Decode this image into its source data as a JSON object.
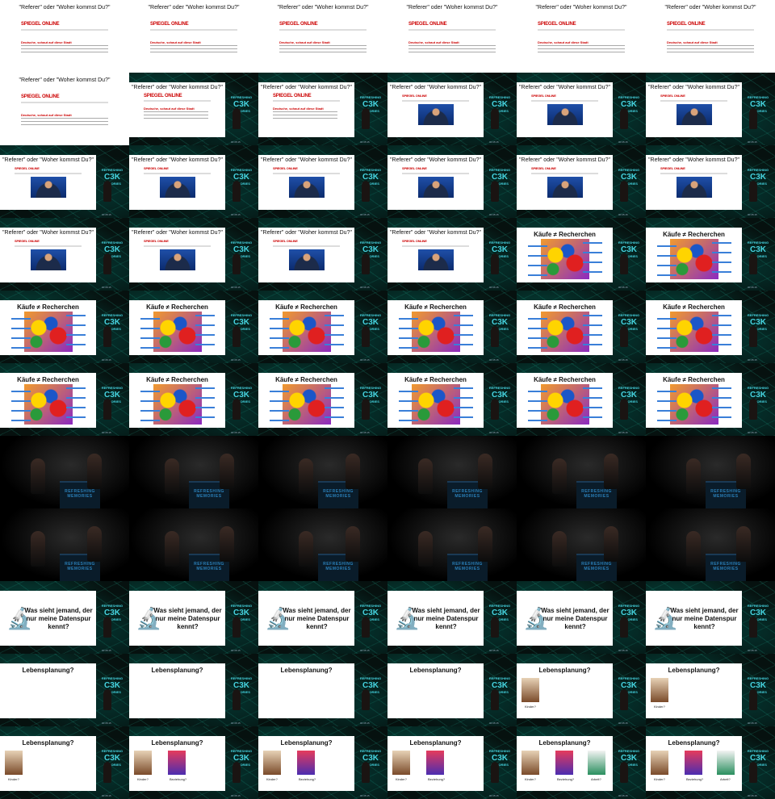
{
  "texts": {
    "referer_title": "\"Referer\" oder \"Woher kommst Du?\"",
    "kaeufe_title": "Käufe ≠ Recherchen",
    "was_sieht": "Was sieht jemand, der nur meine Datenspur kennt?",
    "lebensplanung": "Lebensplanung?",
    "spiegel": "SPIEGEL ONLINE",
    "article": "Deutsche, schaut auf diese Stadt",
    "podium": "REFRESHING MEMORIES",
    "side_logo_top": "REFRESHING",
    "side_logo_big": "C3K",
    "side_logo_bottom": "MEMORIES",
    "timestamp": "00:35:15",
    "cap1": "Kinder?",
    "cap2": "Beziehung?",
    "cap3": "Arbeit?"
  },
  "colors": {
    "background": "#000000",
    "slide": "#ffffff",
    "accent_blue": "#2f8ae0",
    "spiegel_red": "#cc0000",
    "teal": "#46d4e0"
  },
  "cells": [
    {
      "kind": "referer-spiegel",
      "full": true
    },
    {
      "kind": "referer-spiegel",
      "full": true
    },
    {
      "kind": "referer-spiegel",
      "full": true
    },
    {
      "kind": "referer-spiegel",
      "full": true
    },
    {
      "kind": "referer-spiegel",
      "full": true
    },
    {
      "kind": "referer-spiegel",
      "full": true
    },
    {
      "kind": "referer-spiegel",
      "full": true
    },
    {
      "kind": "referer-spiegel"
    },
    {
      "kind": "referer-spiegel"
    },
    {
      "kind": "referer-video"
    },
    {
      "kind": "referer-video"
    },
    {
      "kind": "referer-video"
    },
    {
      "kind": "referer-video"
    },
    {
      "kind": "referer-video"
    },
    {
      "kind": "referer-video"
    },
    {
      "kind": "referer-video"
    },
    {
      "kind": "referer-video"
    },
    {
      "kind": "referer-video"
    },
    {
      "kind": "referer-video"
    },
    {
      "kind": "referer-video"
    },
    {
      "kind": "referer-video"
    },
    {
      "kind": "referer-video"
    },
    {
      "kind": "kaeufe"
    },
    {
      "kind": "kaeufe"
    },
    {
      "kind": "kaeufe"
    },
    {
      "kind": "kaeufe"
    },
    {
      "kind": "kaeufe"
    },
    {
      "kind": "kaeufe"
    },
    {
      "kind": "kaeufe"
    },
    {
      "kind": "kaeufe"
    },
    {
      "kind": "kaeufe"
    },
    {
      "kind": "kaeufe"
    },
    {
      "kind": "kaeufe"
    },
    {
      "kind": "kaeufe"
    },
    {
      "kind": "kaeufe"
    },
    {
      "kind": "kaeufe"
    },
    {
      "kind": "stage"
    },
    {
      "kind": "stage"
    },
    {
      "kind": "stage"
    },
    {
      "kind": "stage"
    },
    {
      "kind": "stage"
    },
    {
      "kind": "stage"
    },
    {
      "kind": "stage"
    },
    {
      "kind": "stage"
    },
    {
      "kind": "stage"
    },
    {
      "kind": "stage"
    },
    {
      "kind": "stage"
    },
    {
      "kind": "stage"
    },
    {
      "kind": "datenspur"
    },
    {
      "kind": "datenspur"
    },
    {
      "kind": "datenspur"
    },
    {
      "kind": "datenspur"
    },
    {
      "kind": "datenspur"
    },
    {
      "kind": "datenspur"
    },
    {
      "kind": "leben",
      "books": 0
    },
    {
      "kind": "leben",
      "books": 0
    },
    {
      "kind": "leben",
      "books": 0
    },
    {
      "kind": "leben",
      "books": 0
    },
    {
      "kind": "leben",
      "books": 1
    },
    {
      "kind": "leben",
      "books": 1
    },
    {
      "kind": "leben",
      "books": 1
    },
    {
      "kind": "leben",
      "books": 2
    },
    {
      "kind": "leben",
      "books": 2
    },
    {
      "kind": "leben",
      "books": 2
    },
    {
      "kind": "leben",
      "books": 3
    },
    {
      "kind": "leben",
      "books": 3
    }
  ]
}
